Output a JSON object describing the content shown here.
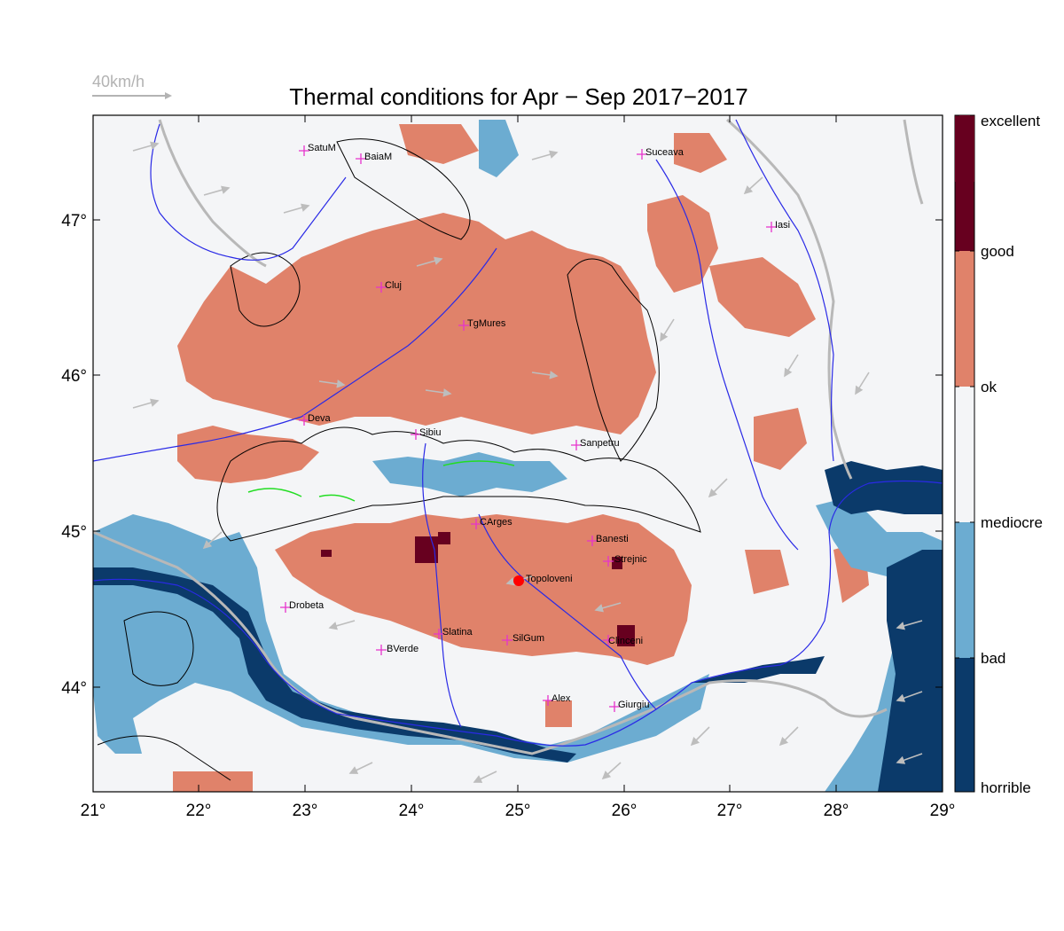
{
  "title": "Thermal conditions for Apr − Sep  2017−2017",
  "wind_reference": {
    "label": "40km/h"
  },
  "axes": {
    "lon_ticks": [
      "21°",
      "22°",
      "23°",
      "24°",
      "25°",
      "26°",
      "27°",
      "28°",
      "29°"
    ],
    "lat_ticks": [
      "47°",
      "46°",
      "45°",
      "44°"
    ]
  },
  "legend": {
    "items": [
      {
        "label": "excellent",
        "color": "#67001f"
      },
      {
        "label": "good",
        "color": "#e0826a"
      },
      {
        "label": "ok",
        "color": "#f4f5f7"
      },
      {
        "label": "mediocre",
        "color": "#6cacd1"
      },
      {
        "label": "bad",
        "color": "#0b3a6a"
      },
      {
        "label": "horrible",
        "color": ""
      }
    ]
  },
  "colors": {
    "excellent": "#67001f",
    "good": "#e0826a",
    "ok": "#f4f5f7",
    "mediocre": "#6cacd1",
    "bad": "#0b3a6a",
    "rivers": "#2a2ae6",
    "borders": "#b8b8b8",
    "contours": "#000000",
    "city_marker": "#e633cc",
    "topoloveni_marker": "#ff0000"
  },
  "cities": [
    {
      "name": "SatuM"
    },
    {
      "name": "BaiaM"
    },
    {
      "name": "Suceava"
    },
    {
      "name": "Iasi"
    },
    {
      "name": "Cluj"
    },
    {
      "name": "TgMures"
    },
    {
      "name": "Deva"
    },
    {
      "name": "Sibiu"
    },
    {
      "name": "Sanpetru"
    },
    {
      "name": "CArges"
    },
    {
      "name": "Banesti"
    },
    {
      "name": "Strejnic"
    },
    {
      "name": "Topoloveni"
    },
    {
      "name": "Drobeta"
    },
    {
      "name": "Slatina"
    },
    {
      "name": "SilGum"
    },
    {
      "name": "Clinceni"
    },
    {
      "name": "BVerde"
    },
    {
      "name": "Alex"
    },
    {
      "name": "Giurgiu"
    }
  ]
}
